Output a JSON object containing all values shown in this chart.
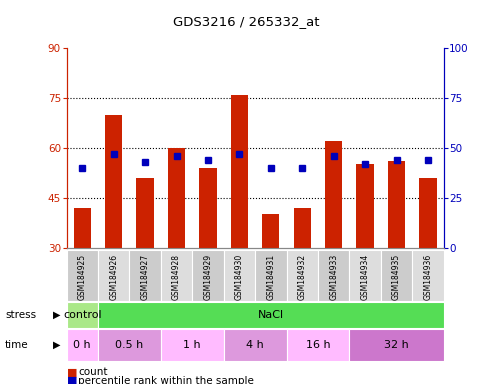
{
  "title": "GDS3216 / 265332_at",
  "samples": [
    "GSM184925",
    "GSM184926",
    "GSM184927",
    "GSM184928",
    "GSM184929",
    "GSM184930",
    "GSM184931",
    "GSM184932",
    "GSM184933",
    "GSM184934",
    "GSM184935",
    "GSM184936"
  ],
  "counts": [
    42,
    70,
    51,
    60,
    54,
    76,
    40,
    42,
    62,
    55,
    56,
    51
  ],
  "percentiles": [
    40,
    47,
    43,
    46,
    44,
    47,
    40,
    40,
    46,
    42,
    44,
    44
  ],
  "ylim_left": [
    30,
    90
  ],
  "ylim_right": [
    0,
    100
  ],
  "yticks_left": [
    30,
    45,
    60,
    75,
    90
  ],
  "yticks_right": [
    0,
    25,
    50,
    75,
    100
  ],
  "hlines": [
    45,
    60,
    75
  ],
  "bar_color": "#cc2200",
  "dot_color": "#0000bb",
  "stress_groups": [
    {
      "label": "control",
      "start": 0,
      "end": 1,
      "color": "#aae888"
    },
    {
      "label": "NaCl",
      "start": 1,
      "end": 12,
      "color": "#55dd55"
    }
  ],
  "time_groups": [
    {
      "label": "0 h",
      "start": 0,
      "end": 1,
      "color": "#ffbbff"
    },
    {
      "label": "0.5 h",
      "start": 1,
      "end": 3,
      "color": "#dd99dd"
    },
    {
      "label": "1 h",
      "start": 3,
      "end": 5,
      "color": "#ffbbff"
    },
    {
      "label": "4 h",
      "start": 5,
      "end": 7,
      "color": "#dd99dd"
    },
    {
      "label": "16 h",
      "start": 7,
      "end": 9,
      "color": "#ffbbff"
    },
    {
      "label": "32 h",
      "start": 9,
      "end": 12,
      "color": "#cc77cc"
    }
  ],
  "legend_count_color": "#cc2200",
  "legend_pct_color": "#0000bb"
}
